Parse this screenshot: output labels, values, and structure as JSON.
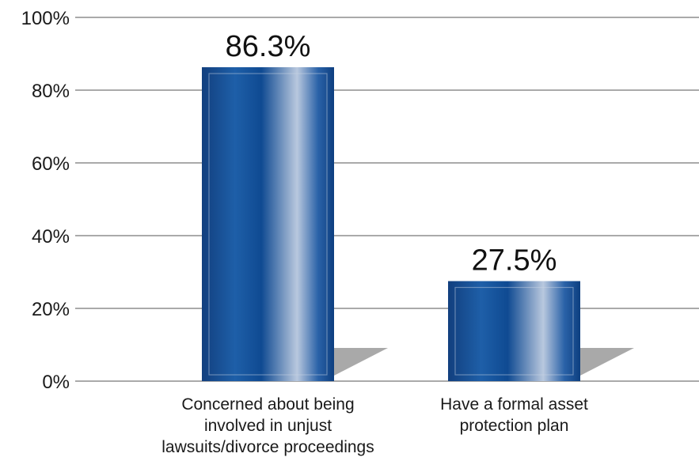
{
  "chart_data": {
    "type": "bar",
    "categories": [
      [
        "Concerned about being",
        "involved in unjust",
        "lawsuits/divorce proceedings"
      ],
      [
        "Have a formal asset",
        "protection plan"
      ]
    ],
    "values": [
      86.3,
      27.5
    ],
    "data_labels": [
      "86.3%",
      "27.5%"
    ],
    "ylim": [
      0,
      100
    ],
    "yticks": [
      0,
      20,
      40,
      60,
      80,
      100
    ],
    "ytick_labels": [
      "0%",
      "20%",
      "40%",
      "60%",
      "80%",
      "100%"
    ],
    "grid": true,
    "legend": "none",
    "title": "",
    "xlabel": "",
    "ylabel": ""
  },
  "colors": {
    "bar_dark": "#0d4a8f",
    "bar_mid": "#1e5fa8",
    "bar_light": "#b9c8de",
    "shadow": "#a9a9a9",
    "grid": "#555555"
  }
}
